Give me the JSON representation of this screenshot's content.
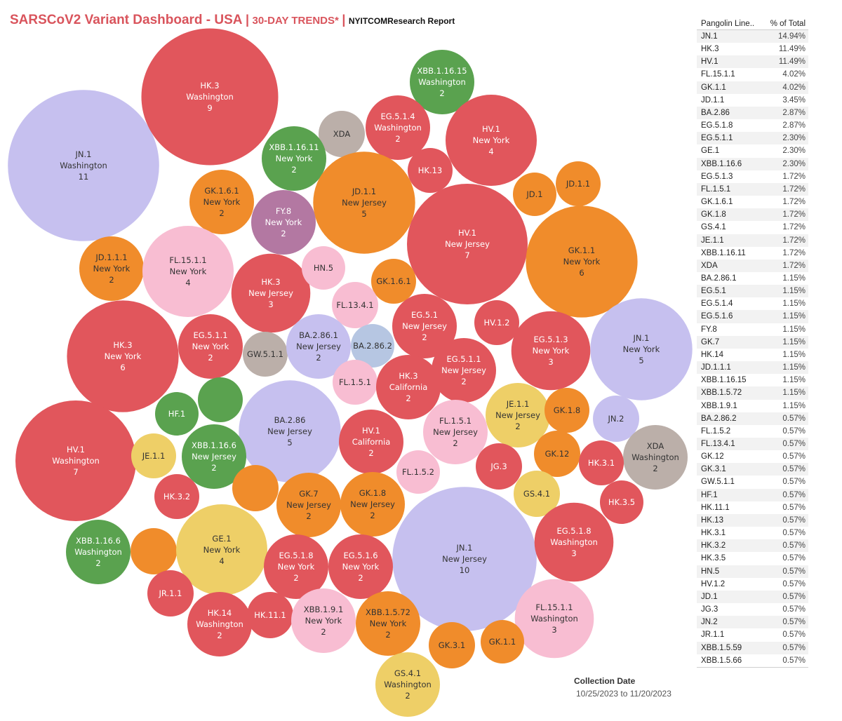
{
  "header": {
    "title": "SARSCoV2 Variant Dashboard - USA",
    "separator": "|",
    "trends": "30-DAY TRENDS*",
    "report": "NYITCOMResearch Report"
  },
  "colors": {
    "red": "#e1565c",
    "orange": "#f08c2b",
    "lavender": "#c6c0ef",
    "green": "#5aa24f",
    "pink": "#f8bdd2",
    "purple": "#b378a2",
    "gray": "#bbafa9",
    "yellow": "#eecf67",
    "light_blue": "#b6c6e2"
  },
  "chart_data": {
    "type": "packed-bubble",
    "size_measure": "count",
    "bubbles": [
      {
        "lineage": "JN.1",
        "state": "Washington",
        "count": 11,
        "color": "lavender"
      },
      {
        "lineage": "HK.3",
        "state": "Washington",
        "count": 9,
        "color": "red"
      },
      {
        "lineage": "XBB.1.16.15",
        "state": "Washington",
        "count": 2,
        "color": "green"
      },
      {
        "lineage": "EG.5.1.4",
        "state": "Washington",
        "count": 2,
        "color": "red"
      },
      {
        "lineage": "HV.1",
        "state": "New York",
        "count": 4,
        "color": "red"
      },
      {
        "lineage": "XDA",
        "state": "",
        "count": 1,
        "color": "gray"
      },
      {
        "lineage": "XBB.1.16.11",
        "state": "New York",
        "count": 2,
        "color": "green"
      },
      {
        "lineage": "HK.13",
        "state": "",
        "count": 1,
        "color": "red"
      },
      {
        "lineage": "JD.1.1",
        "state": "New Jersey",
        "count": 5,
        "color": "orange"
      },
      {
        "lineage": "JD.1",
        "state": "",
        "count": 1,
        "color": "orange"
      },
      {
        "lineage": "JD.1.1",
        "state": "",
        "count": 1,
        "color": "orange"
      },
      {
        "lineage": "GK.1.6.1",
        "state": "New York",
        "count": 2,
        "color": "orange"
      },
      {
        "lineage": "FY.8",
        "state": "New York",
        "count": 2,
        "color": "purple"
      },
      {
        "lineage": "HV.1",
        "state": "New Jersey",
        "count": 7,
        "color": "red"
      },
      {
        "lineage": "GK.1.1",
        "state": "New York",
        "count": 6,
        "color": "orange"
      },
      {
        "lineage": "JD.1.1.1",
        "state": "New York",
        "count": 2,
        "color": "orange"
      },
      {
        "lineage": "FL.15.1.1",
        "state": "New York",
        "count": 4,
        "color": "pink"
      },
      {
        "lineage": "HK.3",
        "state": "New Jersey",
        "count": 3,
        "color": "red"
      },
      {
        "lineage": "HN.5",
        "state": "",
        "count": 1,
        "color": "pink"
      },
      {
        "lineage": "GK.1.6.1",
        "state": "",
        "count": 1,
        "color": "orange"
      },
      {
        "lineage": "FL.13.4.1",
        "state": "",
        "count": 1,
        "color": "pink"
      },
      {
        "lineage": "EG.5.1",
        "state": "New Jersey",
        "count": 2,
        "color": "red"
      },
      {
        "lineage": "HV.1.2",
        "state": "",
        "count": 1,
        "color": "red"
      },
      {
        "lineage": "HK.3",
        "state": "New York",
        "count": 6,
        "color": "red"
      },
      {
        "lineage": "EG.5.1.1",
        "state": "New York",
        "count": 2,
        "color": "red"
      },
      {
        "lineage": "GW.5.1.1",
        "state": "",
        "count": 1,
        "color": "gray"
      },
      {
        "lineage": "BA.2.86.1",
        "state": "New Jersey",
        "count": 2,
        "color": "lavender"
      },
      {
        "lineage": "BA.2.86.2",
        "state": "",
        "count": 1,
        "color": "light_blue"
      },
      {
        "lineage": "EG.5.1.3",
        "state": "New York",
        "count": 3,
        "color": "red"
      },
      {
        "lineage": "JN.1",
        "state": "New York",
        "count": 5,
        "color": "lavender"
      },
      {
        "lineage": "EG.5.1.1",
        "state": "New Jersey",
        "count": 2,
        "color": "red"
      },
      {
        "lineage": "FL.1.5.1",
        "state": "",
        "count": 1,
        "color": "pink"
      },
      {
        "lineage": "HK.3",
        "state": "California",
        "count": 2,
        "color": "red"
      },
      {
        "lineage": "HF.1",
        "state": "",
        "count": 1,
        "color": "green"
      },
      {
        "lineage": "",
        "state": "",
        "count": 1,
        "color": "green"
      },
      {
        "lineage": "BA.2.86",
        "state": "New Jersey",
        "count": 5,
        "color": "lavender"
      },
      {
        "lineage": "JE.1.1",
        "state": "New Jersey",
        "count": 2,
        "color": "yellow"
      },
      {
        "lineage": "GK.1.8",
        "state": "",
        "count": 1,
        "color": "orange"
      },
      {
        "lineage": "JN.2",
        "state": "",
        "count": 1,
        "color": "lavender"
      },
      {
        "lineage": "HV.1",
        "state": "Washington",
        "count": 7,
        "color": "red"
      },
      {
        "lineage": "JE.1.1",
        "state": "",
        "count": 1,
        "color": "yellow"
      },
      {
        "lineage": "XBB.1.16.6",
        "state": "New Jersey",
        "count": 2,
        "color": "green"
      },
      {
        "lineage": "FL.1.5.1",
        "state": "New Jersey",
        "count": 2,
        "color": "pink"
      },
      {
        "lineage": "HV.1",
        "state": "California",
        "count": 2,
        "color": "red"
      },
      {
        "lineage": "GK.12",
        "state": "",
        "count": 1,
        "color": "orange"
      },
      {
        "lineage": "XDA",
        "state": "Washington",
        "count": 2,
        "color": "gray"
      },
      {
        "lineage": "HK.3.1",
        "state": "",
        "count": 1,
        "color": "red"
      },
      {
        "lineage": "JG.3",
        "state": "",
        "count": 1,
        "color": "red"
      },
      {
        "lineage": "FL.1.5.2",
        "state": "",
        "count": 1,
        "color": "pink"
      },
      {
        "lineage": "HK.3.2",
        "state": "",
        "count": 1,
        "color": "red"
      },
      {
        "lineage": "",
        "state": "",
        "count": 1,
        "color": "orange"
      },
      {
        "lineage": "GK.7",
        "state": "New Jersey",
        "count": 2,
        "color": "orange"
      },
      {
        "lineage": "GK.1.8",
        "state": "New Jersey",
        "count": 2,
        "color": "orange"
      },
      {
        "lineage": "GS.4.1",
        "state": "",
        "count": 1,
        "color": "yellow"
      },
      {
        "lineage": "HK.3.5",
        "state": "",
        "count": 1,
        "color": "red"
      },
      {
        "lineage": "XBB.1.16.6",
        "state": "Washington",
        "count": 2,
        "color": "green"
      },
      {
        "lineage": "",
        "state": "",
        "count": 1,
        "color": "orange"
      },
      {
        "lineage": "GE.1",
        "state": "New York",
        "count": 4,
        "color": "yellow"
      },
      {
        "lineage": "JN.1",
        "state": "New Jersey",
        "count": 10,
        "color": "lavender"
      },
      {
        "lineage": "EG.5.1.8",
        "state": "Washington",
        "count": 3,
        "color": "red"
      },
      {
        "lineage": "EG.5.1.8",
        "state": "New York",
        "count": 2,
        "color": "red"
      },
      {
        "lineage": "EG.5.1.6",
        "state": "New York",
        "count": 2,
        "color": "red"
      },
      {
        "lineage": "JR.1.1",
        "state": "",
        "count": 1,
        "color": "red"
      },
      {
        "lineage": "FL.15.1.1",
        "state": "Washington",
        "count": 3,
        "color": "pink"
      },
      {
        "lineage": "HK.14",
        "state": "Washington",
        "count": 2,
        "color": "red"
      },
      {
        "lineage": "HK.11.1",
        "state": "",
        "count": 1,
        "color": "red"
      },
      {
        "lineage": "XBB.1.9.1",
        "state": "New York",
        "count": 2,
        "color": "pink"
      },
      {
        "lineage": "XBB.1.5.72",
        "state": "New York",
        "count": 2,
        "color": "orange"
      },
      {
        "lineage": "GK.3.1",
        "state": "",
        "count": 1,
        "color": "orange"
      },
      {
        "lineage": "GK.1.1",
        "state": "",
        "count": 1,
        "color": "orange"
      },
      {
        "lineage": "GS.4.1",
        "state": "Washington",
        "count": 2,
        "color": "yellow"
      }
    ]
  },
  "legend": {
    "col_lineage": "Pangolin Line..",
    "col_pct": "% of Total",
    "rows": [
      {
        "name": "JN.1",
        "pct": "14.94%"
      },
      {
        "name": "HK.3",
        "pct": "11.49%"
      },
      {
        "name": "HV.1",
        "pct": "11.49%"
      },
      {
        "name": "FL.15.1.1",
        "pct": "4.02%"
      },
      {
        "name": "GK.1.1",
        "pct": "4.02%"
      },
      {
        "name": "JD.1.1",
        "pct": "3.45%"
      },
      {
        "name": "BA.2.86",
        "pct": "2.87%"
      },
      {
        "name": "EG.5.1.8",
        "pct": "2.87%"
      },
      {
        "name": "EG.5.1.1",
        "pct": "2.30%"
      },
      {
        "name": "GE.1",
        "pct": "2.30%"
      },
      {
        "name": "XBB.1.16.6",
        "pct": "2.30%"
      },
      {
        "name": "EG.5.1.3",
        "pct": "1.72%"
      },
      {
        "name": "FL.1.5.1",
        "pct": "1.72%"
      },
      {
        "name": "GK.1.6.1",
        "pct": "1.72%"
      },
      {
        "name": "GK.1.8",
        "pct": "1.72%"
      },
      {
        "name": "GS.4.1",
        "pct": "1.72%"
      },
      {
        "name": "JE.1.1",
        "pct": "1.72%"
      },
      {
        "name": "XBB.1.16.11",
        "pct": "1.72%"
      },
      {
        "name": "XDA",
        "pct": "1.72%"
      },
      {
        "name": "BA.2.86.1",
        "pct": "1.15%"
      },
      {
        "name": "EG.5.1",
        "pct": "1.15%"
      },
      {
        "name": "EG.5.1.4",
        "pct": "1.15%"
      },
      {
        "name": "EG.5.1.6",
        "pct": "1.15%"
      },
      {
        "name": "FY.8",
        "pct": "1.15%"
      },
      {
        "name": "GK.7",
        "pct": "1.15%"
      },
      {
        "name": "HK.14",
        "pct": "1.15%"
      },
      {
        "name": "JD.1.1.1",
        "pct": "1.15%"
      },
      {
        "name": "XBB.1.16.15",
        "pct": "1.15%"
      },
      {
        "name": "XBB.1.5.72",
        "pct": "1.15%"
      },
      {
        "name": "XBB.1.9.1",
        "pct": "1.15%"
      },
      {
        "name": "BA.2.86.2",
        "pct": "0.57%"
      },
      {
        "name": "FL.1.5.2",
        "pct": "0.57%"
      },
      {
        "name": "FL.13.4.1",
        "pct": "0.57%"
      },
      {
        "name": "GK.12",
        "pct": "0.57%"
      },
      {
        "name": "GK.3.1",
        "pct": "0.57%"
      },
      {
        "name": "GW.5.1.1",
        "pct": "0.57%"
      },
      {
        "name": "HF.1",
        "pct": "0.57%"
      },
      {
        "name": "HK.11.1",
        "pct": "0.57%"
      },
      {
        "name": "HK.13",
        "pct": "0.57%"
      },
      {
        "name": "HK.3.1",
        "pct": "0.57%"
      },
      {
        "name": "HK.3.2",
        "pct": "0.57%"
      },
      {
        "name": "HK.3.5",
        "pct": "0.57%"
      },
      {
        "name": "HN.5",
        "pct": "0.57%"
      },
      {
        "name": "HV.1.2",
        "pct": "0.57%"
      },
      {
        "name": "JD.1",
        "pct": "0.57%"
      },
      {
        "name": "JG.3",
        "pct": "0.57%"
      },
      {
        "name": "JN.2",
        "pct": "0.57%"
      },
      {
        "name": "JR.1.1",
        "pct": "0.57%"
      },
      {
        "name": "XBB.1.5.59",
        "pct": "0.57%"
      },
      {
        "name": "XBB.1.5.66",
        "pct": "0.57%"
      }
    ]
  },
  "collection": {
    "title": "Collection Date",
    "range": "10/25/2023 to 11/20/2023"
  }
}
